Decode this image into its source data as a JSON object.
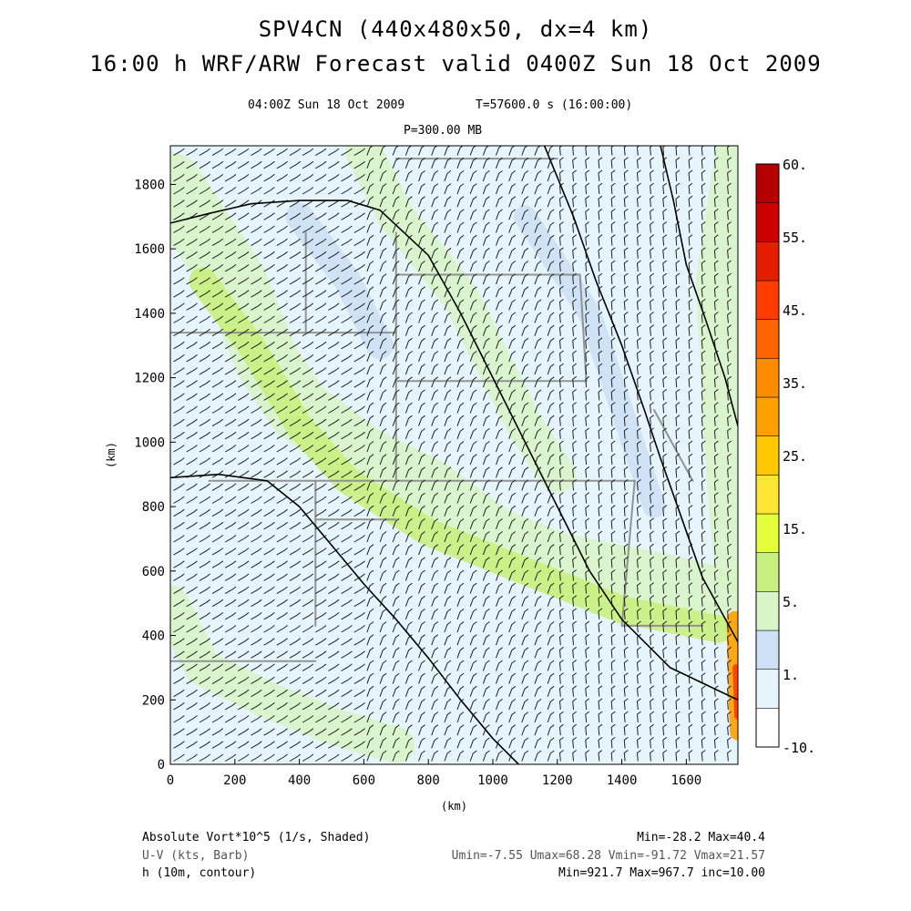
{
  "header": {
    "title1": "SPV4CN (440x480x50, dx=4 km)",
    "title2": "16:00 h WRF/ARW Forecast valid 0400Z Sun 18 Oct 2009",
    "valid_time": "04:00Z Sun 18 Oct 2009",
    "model_time": "T=57600.0 s (16:00:00)",
    "level": "P=300.00 MB"
  },
  "footer": {
    "field1": "Absolute Vort*10^5 (1/s, Shaded)",
    "field1_stats": "Min=-28.2 Max=40.4",
    "field2": "U-V (kts, Barb)",
    "field2_stats": "Umin=-7.55 Umax=68.28 Vmin=-91.72 Vmax=21.57",
    "field3": "h (10m, contour)",
    "field3_stats": "Min=921.7 Max=967.7 inc=10.00"
  },
  "chart_data": {
    "type": "heatmap",
    "title": "SPV4CN (440x480x50, dx=4 km)",
    "xlabel": "(km)",
    "ylabel": "(km)",
    "xlim": [
      0,
      1760
    ],
    "ylim": [
      0,
      1920
    ],
    "xticks": [
      "0",
      "200",
      "400",
      "600",
      "800",
      "1000",
      "1200",
      "1400",
      "1600"
    ],
    "yticks": [
      "0",
      "200",
      "400",
      "600",
      "800",
      "1000",
      "1200",
      "1400",
      "1600",
      "1800"
    ],
    "colorbar": {
      "labels": [
        "60.",
        "55.",
        "45.",
        "35.",
        "25.",
        "15.",
        "5.",
        "1.",
        "-10."
      ],
      "colors": [
        "#ffffff",
        "#e6f4fb",
        "#cde0f5",
        "#d8f5c8",
        "#c8f080",
        "#e6ff3c",
        "#ffe632",
        "#ffc800",
        "#ffa000",
        "#ff8c00",
        "#ff6400",
        "#ff3c00",
        "#e61e00",
        "#cc0000",
        "#b40000"
      ]
    },
    "height_contours": [
      {
        "name": "",
        "points": [
          [
            0,
            1680
          ],
          [
            120,
            1710
          ],
          [
            250,
            1740
          ],
          [
            400,
            1750
          ],
          [
            550,
            1750
          ],
          [
            650,
            1720
          ],
          [
            800,
            1580
          ],
          [
            900,
            1400
          ],
          [
            1000,
            1200
          ],
          [
            1100,
            1000
          ],
          [
            1200,
            800
          ],
          [
            1300,
            600
          ],
          [
            1400,
            450
          ],
          [
            1550,
            300
          ],
          [
            1760,
            200
          ]
        ]
      },
      {
        "name": "",
        "points": [
          [
            0,
            890
          ],
          [
            150,
            900
          ],
          [
            300,
            880
          ],
          [
            400,
            800
          ],
          [
            500,
            680
          ],
          [
            600,
            560
          ],
          [
            700,
            450
          ],
          [
            800,
            330
          ],
          [
            900,
            200
          ],
          [
            1000,
            80
          ],
          [
            1080,
            0
          ]
        ]
      },
      {
        "name": "",
        "points": [
          [
            1160,
            1920
          ],
          [
            1250,
            1700
          ],
          [
            1320,
            1500
          ],
          [
            1400,
            1300
          ],
          [
            1470,
            1100
          ],
          [
            1520,
            950
          ],
          [
            1580,
            780
          ],
          [
            1650,
            580
          ],
          [
            1760,
            380
          ]
        ]
      },
      {
        "name": "",
        "points": [
          [
            1520,
            1920
          ],
          [
            1560,
            1750
          ],
          [
            1600,
            1550
          ],
          [
            1660,
            1380
          ],
          [
            1720,
            1200
          ],
          [
            1760,
            1050
          ]
        ]
      }
    ],
    "vorticity_ranges": {
      "min": -28.2,
      "max": 40.4
    },
    "wind_ranges": {
      "umin": -7.55,
      "umax": 68.28,
      "vmin": -91.72,
      "vmax": 21.57
    },
    "height_ranges": {
      "min": 921.7,
      "max": 967.7,
      "inc": 10.0
    }
  }
}
